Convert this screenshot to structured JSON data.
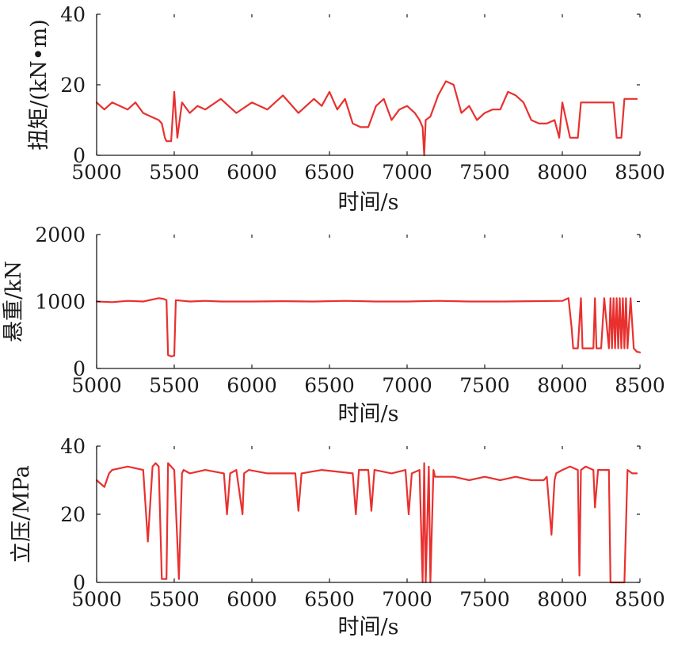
{
  "chart_data": [
    {
      "type": "line",
      "id": "torque",
      "ylabel": "扭矩/(kN•m)",
      "xlabel": "时间/s",
      "xlim": [
        5000,
        8500
      ],
      "ylim": [
        0,
        40
      ],
      "xticks": [
        5000,
        5500,
        6000,
        6500,
        7000,
        7500,
        8000,
        8500
      ],
      "yticks": [
        0,
        20,
        40
      ],
      "color": "#e8312f",
      "series": [
        {
          "x": [
            5000,
            5050,
            5100,
            5150,
            5200,
            5250,
            5300,
            5350,
            5400,
            5420,
            5440,
            5450,
            5480,
            5500,
            5520,
            5550,
            5600,
            5650,
            5700,
            5800,
            5900,
            6000,
            6100,
            6200,
            6300,
            6400,
            6450,
            6500,
            6550,
            6600,
            6650,
            6700,
            6750,
            6800,
            6850,
            6900,
            6950,
            7000,
            7050,
            7080,
            7100,
            7110,
            7120,
            7150,
            7200,
            7250,
            7300,
            7350,
            7400,
            7450,
            7500,
            7550,
            7600,
            7650,
            7700,
            7750,
            7800,
            7850,
            7900,
            7950,
            7980,
            8000,
            8050,
            8100,
            8120,
            8150,
            8200,
            8250,
            8300,
            8330,
            8350,
            8380,
            8400,
            8450,
            8480
          ],
          "y": [
            15,
            13,
            15,
            14,
            13,
            15,
            12,
            11,
            10,
            9,
            5,
            4,
            4,
            18,
            5,
            15,
            12,
            14,
            13,
            16,
            12,
            15,
            13,
            17,
            12,
            16,
            14,
            18,
            13,
            16,
            9,
            8,
            8,
            14,
            16,
            10,
            13,
            14,
            12,
            10,
            8,
            0,
            10,
            11,
            17,
            21,
            20,
            12,
            14,
            10,
            12,
            13,
            13,
            18,
            17,
            15,
            10,
            9,
            9,
            10,
            5,
            15,
            5,
            5,
            15,
            15,
            15,
            15,
            15,
            15,
            5,
            5,
            16,
            16,
            16
          ]
        }
      ]
    },
    {
      "type": "line",
      "id": "hookload",
      "ylabel": "悬重/kN",
      "xlabel": "时间/s",
      "xlim": [
        5000,
        8500
      ],
      "ylim": [
        0,
        2000
      ],
      "xticks": [
        5000,
        5500,
        6000,
        6500,
        7000,
        7500,
        8000,
        8500
      ],
      "yticks": [
        0,
        1000,
        2000
      ],
      "color": "#e8312f",
      "series": [
        {
          "x": [
            5000,
            5100,
            5200,
            5300,
            5400,
            5430,
            5450,
            5460,
            5480,
            5500,
            5510,
            5600,
            5700,
            5800,
            6000,
            6200,
            6400,
            6600,
            6800,
            7000,
            7200,
            7400,
            7600,
            7800,
            8000,
            8040,
            8060,
            8070,
            8080,
            8100,
            8120,
            8130,
            8140,
            8150,
            8200,
            8210,
            8220,
            8250,
            8270,
            8300,
            8310,
            8320,
            8330,
            8340,
            8350,
            8360,
            8370,
            8380,
            8390,
            8400,
            8410,
            8420,
            8440,
            8460,
            8480,
            8500
          ],
          "y": [
            1000,
            990,
            1010,
            1000,
            1050,
            1040,
            1020,
            200,
            180,
            190,
            1020,
            1000,
            1010,
            1000,
            1000,
            1005,
            1000,
            1010,
            1000,
            1000,
            1010,
            1000,
            1000,
            1005,
            1010,
            1050,
            600,
            300,
            300,
            300,
            1050,
            300,
            300,
            300,
            300,
            1050,
            300,
            300,
            1050,
            300,
            1050,
            300,
            1050,
            300,
            1050,
            300,
            1050,
            300,
            1050,
            300,
            1050,
            300,
            1050,
            300,
            250,
            240
          ]
        }
      ]
    },
    {
      "type": "line",
      "id": "standpipe",
      "ylabel": "立压/MPa",
      "xlabel": "时间/s",
      "xlim": [
        5000,
        8500
      ],
      "ylim": [
        0,
        40
      ],
      "xticks": [
        5000,
        5500,
        6000,
        6500,
        7000,
        7500,
        8000,
        8500
      ],
      "yticks": [
        0,
        20,
        40
      ],
      "color": "#e8312f",
      "series": [
        {
          "x": [
            5000,
            5050,
            5080,
            5100,
            5200,
            5300,
            5330,
            5360,
            5380,
            5400,
            5420,
            5450,
            5460,
            5500,
            5530,
            5550,
            5560,
            5600,
            5700,
            5820,
            5840,
            5860,
            5900,
            5940,
            5950,
            5980,
            6100,
            6280,
            6300,
            6320,
            6450,
            6650,
            6670,
            6690,
            6750,
            6770,
            6790,
            6900,
            6990,
            7010,
            7030,
            7080,
            7100,
            7110,
            7120,
            7140,
            7150,
            7170,
            7180,
            7200,
            7300,
            7400,
            7500,
            7600,
            7700,
            7800,
            7880,
            7900,
            7930,
            7950,
            7960,
            8000,
            8050,
            8100,
            8110,
            8120,
            8150,
            8200,
            8210,
            8230,
            8300,
            8310,
            8330,
            8400,
            8420,
            8450,
            8480
          ],
          "y": [
            30,
            28,
            32,
            33,
            34,
            33,
            12,
            34,
            35,
            34,
            1,
            1,
            35,
            33,
            1,
            32,
            33,
            32,
            33,
            32,
            20,
            32,
            33,
            20,
            32,
            33,
            32,
            32,
            21,
            32,
            33,
            32,
            20,
            33,
            33,
            21,
            33,
            32,
            33,
            20,
            32,
            33,
            0,
            35,
            0,
            34,
            0,
            33,
            31,
            31,
            31,
            30,
            31,
            30,
            31,
            30,
            30,
            31,
            14,
            30,
            32,
            33,
            34,
            33,
            2,
            33,
            34,
            33,
            22,
            33,
            33,
            0,
            0,
            0,
            33,
            32,
            32
          ]
        }
      ]
    }
  ]
}
